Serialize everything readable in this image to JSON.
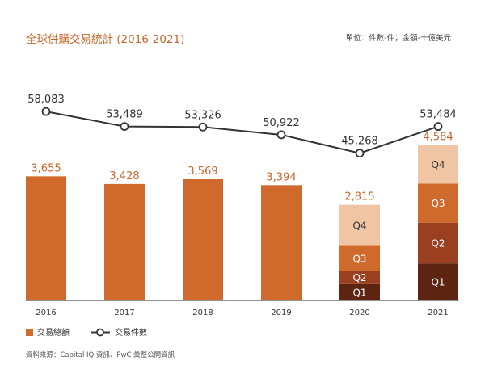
{
  "header": {
    "title": "全球併購交易統計 (2016-2021)",
    "unit_note": "單位：件數-件；金額-十億美元"
  },
  "footer": {
    "source": "資料來源：Capital IQ 資訊、PwC 彙整公開資訊"
  },
  "chart_data": {
    "type": "bar",
    "title": "全球併購交易統計 (2016-2021)",
    "categories": [
      "2016",
      "2017",
      "2018",
      "2019",
      "2020",
      "2021"
    ],
    "series": [
      {
        "name": "交易總額",
        "type": "bar",
        "color": "#cf6a2c",
        "values": [
          3655,
          3428,
          3569,
          3394,
          2815,
          4584
        ],
        "labels": [
          "3,655",
          "3,428",
          "3,569",
          "3,394",
          "2,815",
          "4,584"
        ]
      },
      {
        "name": "交易件數",
        "type": "line",
        "color": "#333333",
        "values": [
          58083,
          53489,
          53326,
          50922,
          45268,
          53484
        ],
        "labels": [
          "58,083",
          "53,489",
          "53,326",
          "50,922",
          "45,268",
          "53,484"
        ]
      }
    ],
    "quarterly_breakdown": [
      {
        "category": "2020",
        "quarters": [
          {
            "label": "Q1",
            "value": 480,
            "color": "#5e2412",
            "text_color": "#ffffff"
          },
          {
            "label": "Q2",
            "value": 390,
            "color": "#9a3f20",
            "text_color": "#ffffff"
          },
          {
            "label": "Q3",
            "value": 735,
            "color": "#cf6a2c",
            "text_color": "#ffffff"
          },
          {
            "label": "Q4",
            "value": 1210,
            "color": "#efc5a3",
            "text_color": "#333333"
          }
        ]
      },
      {
        "category": "2021",
        "quarters": [
          {
            "label": "Q1",
            "value": 1090,
            "color": "#5e2412",
            "text_color": "#ffffff"
          },
          {
            "label": "Q2",
            "value": 1200,
            "color": "#9a3f20",
            "text_color": "#ffffff"
          },
          {
            "label": "Q3",
            "value": 1150,
            "color": "#cf6a2c",
            "text_color": "#ffffff"
          },
          {
            "label": "Q4",
            "value": 1144,
            "color": "#efc5a3",
            "text_color": "#333333"
          }
        ]
      }
    ],
    "bar_axis": {
      "ylim": [
        0,
        8400
      ]
    },
    "line_axis": {
      "ylim": [
        0,
        75000
      ]
    },
    "legend": {
      "position": "bottom-left",
      "items": [
        {
          "label": "交易總額",
          "marker": "square",
          "color": "#cf6a2c"
        },
        {
          "label": "交易件數",
          "marker": "line-dot",
          "color": "#333333"
        }
      ]
    }
  }
}
